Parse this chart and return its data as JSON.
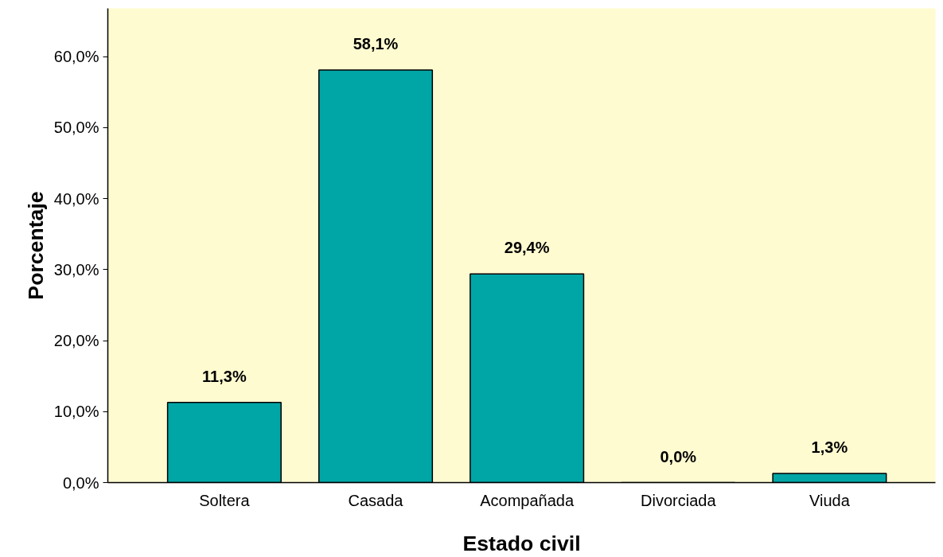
{
  "chart_data": {
    "type": "bar",
    "xlabel": "Estado civil",
    "ylabel": "Porcentaje",
    "categories": [
      "Soltera",
      "Casada",
      "Acompañada",
      "Divorciada",
      "Viuda"
    ],
    "values": [
      11.3,
      58.1,
      29.4,
      0.0,
      1.3
    ],
    "value_labels": [
      "11,3%",
      "58,1%",
      "29,4%",
      "0,0%",
      "1,3%"
    ],
    "color": "#00a6a6",
    "ylim": [
      0,
      66.8
    ],
    "yticks": [
      {
        "value": 0,
        "label": "0,0%"
      },
      {
        "value": 10,
        "label": "10,0%"
      },
      {
        "value": 20,
        "label": "20,0%"
      },
      {
        "value": 30,
        "label": "30,0%"
      },
      {
        "value": 40,
        "label": "40,0%"
      },
      {
        "value": 50,
        "label": "50,0%"
      },
      {
        "value": 60,
        "label": "60,0%"
      }
    ],
    "grid": false
  }
}
